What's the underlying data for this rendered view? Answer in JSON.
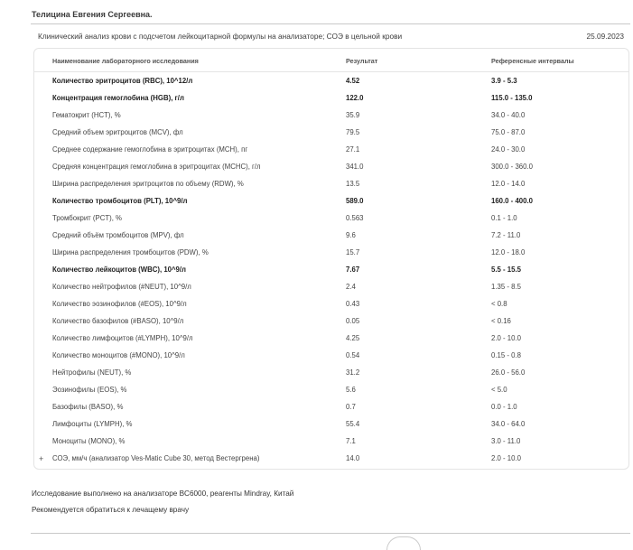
{
  "patient": {
    "name": "Телицина Евгения Сергеевна."
  },
  "test": {
    "title": "Клинический анализ крови с подсчетом лейкоцитарной формулы на анализаторе; СОЭ в цельной крови",
    "date": "25.09.2023"
  },
  "table": {
    "headers": {
      "name": "Наименование лабораторного исследования",
      "result": "Результат",
      "reference": "Референсные интервалы"
    },
    "rows": [
      {
        "name": "Количество эритроцитов (RBC), 10^12/л",
        "result": "4.52",
        "reference": "3.9 - 5.3",
        "bold": true
      },
      {
        "name": "Концентрация гемоглобина (HGB), г/л",
        "result": "122.0",
        "reference": "115.0 - 135.0",
        "bold": true
      },
      {
        "name": "Гематокрит (HCT), %",
        "result": "35.9",
        "reference": "34.0 - 40.0",
        "bold": false
      },
      {
        "name": "Средний объем эритроцитов (MCV), фл",
        "result": "79.5",
        "reference": "75.0 - 87.0",
        "bold": false
      },
      {
        "name": "Среднее содержание гемоглобина в эритроцитах (MCH), пг",
        "result": "27.1",
        "reference": "24.0 - 30.0",
        "bold": false
      },
      {
        "name": "Средняя концентрация гемоглобина в эритроцитах (MCHC), г/л",
        "result": "341.0",
        "reference": "300.0 - 360.0",
        "bold": false
      },
      {
        "name": "Ширина распределения эритроцитов по объему (RDW), %",
        "result": "13.5",
        "reference": "12.0 - 14.0",
        "bold": false
      },
      {
        "name": "Количество тромбоцитов (PLT), 10^9/л",
        "result": "589.0",
        "reference": "160.0 - 400.0",
        "bold": true
      },
      {
        "name": "Тромбокрит (PCT), %",
        "result": "0.563",
        "reference": "0.1 - 1.0",
        "bold": false
      },
      {
        "name": "Средний объём тромбоцитов (MPV), фл",
        "result": "9.6",
        "reference": "7.2 - 11.0",
        "bold": false
      },
      {
        "name": "Ширина распределения тромбоцитов (PDW), %",
        "result": "15.7",
        "reference": "12.0 - 18.0",
        "bold": false
      },
      {
        "name": "Количество лейкоцитов (WBC), 10^9/л",
        "result": "7.67",
        "reference": "5.5 - 15.5",
        "bold": true
      },
      {
        "name": "Количество нейтрофилов (#NEUT), 10^9/л",
        "result": "2.4",
        "reference": "1.35 - 8.5",
        "bold": false
      },
      {
        "name": "Количество эозинофилов (#EOS), 10^9/л",
        "result": "0.43",
        "reference": "< 0.8",
        "bold": false
      },
      {
        "name": "Количество базофилов (#BASO), 10^9/л",
        "result": "0.05",
        "reference": "< 0.16",
        "bold": false
      },
      {
        "name": "Количество лимфоцитов (#LYMPH), 10^9/л",
        "result": "4.25",
        "reference": "2.0 - 10.0",
        "bold": false
      },
      {
        "name": "Количество моноцитов (#MONO), 10^9/л",
        "result": "0.54",
        "reference": "0.15 - 0.8",
        "bold": false
      },
      {
        "name": "Нейтрофилы (NEUT), %",
        "result": "31.2",
        "reference": "26.0 - 56.0",
        "bold": false
      },
      {
        "name": "Эозинофилы (EOS), %",
        "result": "5.6",
        "reference": "< 5.0",
        "bold": false
      },
      {
        "name": "Базофилы (BASO), %",
        "result": "0.7",
        "reference": "0.0 - 1.0",
        "bold": false
      },
      {
        "name": "Лимфоциты (LYMPH), %",
        "result": "55.4",
        "reference": "34.0 - 64.0",
        "bold": false
      },
      {
        "name": "Моноциты (MONO), %",
        "result": "7.1",
        "reference": "3.0 - 11.0",
        "bold": false
      },
      {
        "name": "СОЭ, мм/ч (анализатор Ves-Matic Cube 30, метод Вестергрена)",
        "result": "14.0",
        "reference": "2.0 - 10.0",
        "bold": false,
        "expand": "+"
      }
    ]
  },
  "notes": {
    "analyzer": "Исследование выполнено на анализаторе BC6000, реагенты Mindray, Китай",
    "recommendation": "Рекомендуется обратиться к лечащему врачу"
  }
}
